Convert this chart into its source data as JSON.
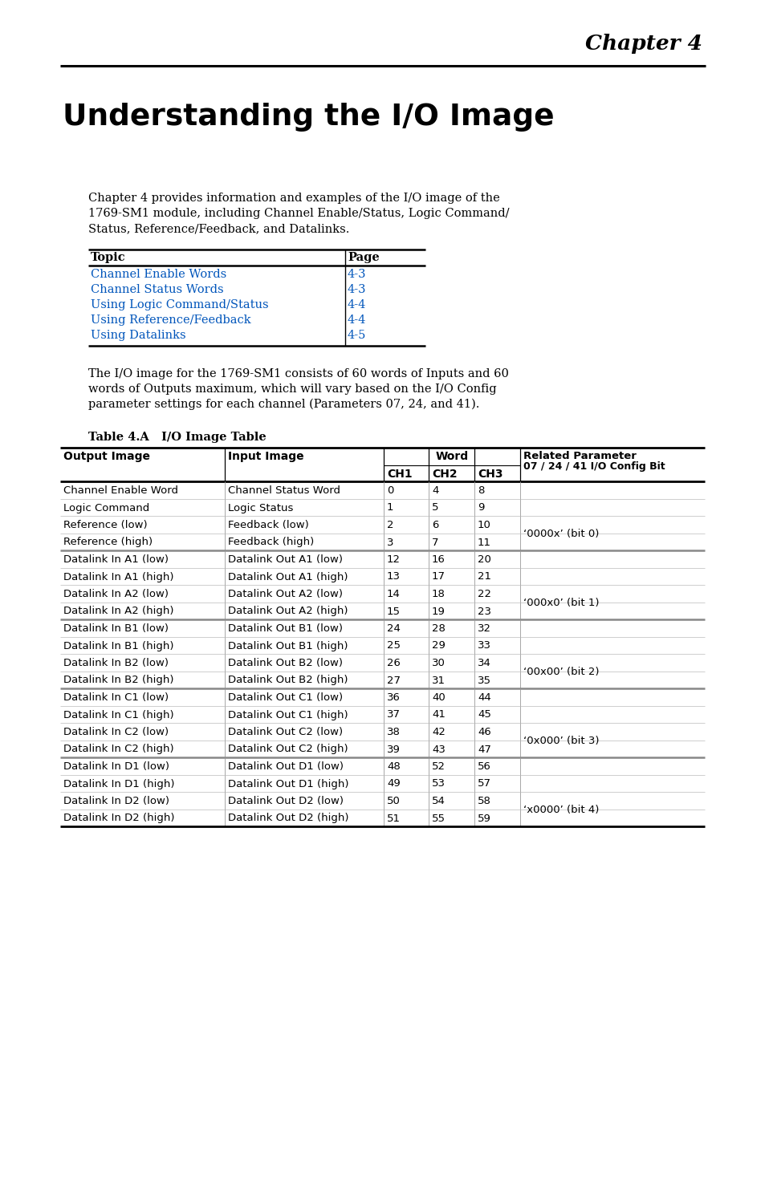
{
  "chapter_label": "Chapter 4",
  "title": "Understanding the I/O Image",
  "intro_text": "Chapter 4 provides information and examples of the I/O image of the\n1769-SM1 module, including Channel Enable/Status, Logic Command/\nStatus, Reference/Feedback, and Datalinks.",
  "toc_header": [
    "Topic",
    "Page"
  ],
  "toc_rows": [
    [
      "Channel Enable Words",
      "4-3"
    ],
    [
      "Channel Status Words",
      "4-3"
    ],
    [
      "Using Logic Command/Status",
      "4-4"
    ],
    [
      "Using Reference/Feedback",
      "4-4"
    ],
    [
      "Using Datalinks",
      "4-5"
    ]
  ],
  "body_text": "The I/O image for the 1769-SM1 consists of 60 words of Inputs and 60\nwords of Outputs maximum, which will vary based on the I/O Config\nparameter settings for each channel (Parameters 07, 24, and 41).",
  "table_title": "Table 4.A   I/O Image Table",
  "table_rows": [
    [
      "Channel Enable Word",
      "Channel Status Word",
      "0",
      "4",
      "8",
      ""
    ],
    [
      "Logic Command",
      "Logic Status",
      "1",
      "5",
      "9",
      ""
    ],
    [
      "Reference (low)",
      "Feedback (low)",
      "2",
      "6",
      "10",
      "‘0000x’ (bit 0)"
    ],
    [
      "Reference (high)",
      "Feedback (high)",
      "3",
      "7",
      "11",
      ""
    ],
    [
      "Datalink In A1 (low)",
      "Datalink Out A1 (low)",
      "12",
      "16",
      "20",
      ""
    ],
    [
      "Datalink In A1 (high)",
      "Datalink Out A1 (high)",
      "13",
      "17",
      "21",
      ""
    ],
    [
      "Datalink In A2 (low)",
      "Datalink Out A2 (low)",
      "14",
      "18",
      "22",
      "‘000x0’ (bit 1)"
    ],
    [
      "Datalink In A2 (high)",
      "Datalink Out A2 (high)",
      "15",
      "19",
      "23",
      ""
    ],
    [
      "Datalink In B1 (low)",
      "Datalink Out B1 (low)",
      "24",
      "28",
      "32",
      ""
    ],
    [
      "Datalink In B1 (high)",
      "Datalink Out B1 (high)",
      "25",
      "29",
      "33",
      ""
    ],
    [
      "Datalink In B2 (low)",
      "Datalink Out B2 (low)",
      "26",
      "30",
      "34",
      "‘00x00’ (bit 2)"
    ],
    [
      "Datalink In B2 (high)",
      "Datalink Out B2 (high)",
      "27",
      "31",
      "35",
      ""
    ],
    [
      "Datalink In C1 (low)",
      "Datalink Out C1 (low)",
      "36",
      "40",
      "44",
      ""
    ],
    [
      "Datalink In C1 (high)",
      "Datalink Out C1 (high)",
      "37",
      "41",
      "45",
      ""
    ],
    [
      "Datalink In C2 (low)",
      "Datalink Out C2 (low)",
      "38",
      "42",
      "46",
      "‘0x000’ (bit 3)"
    ],
    [
      "Datalink In C2 (high)",
      "Datalink Out C2 (high)",
      "39",
      "43",
      "47",
      ""
    ],
    [
      "Datalink In D1 (low)",
      "Datalink Out D1 (low)",
      "48",
      "52",
      "56",
      ""
    ],
    [
      "Datalink In D1 (high)",
      "Datalink Out D1 (high)",
      "49",
      "53",
      "57",
      ""
    ],
    [
      "Datalink In D2 (low)",
      "Datalink Out D2 (low)",
      "50",
      "54",
      "58",
      "‘x0000’ (bit 4)"
    ],
    [
      "Datalink In D2 (high)",
      "Datalink Out D2 (high)",
      "51",
      "55",
      "59",
      ""
    ]
  ],
  "thick_separator_before": [
    4,
    8,
    12,
    16
  ],
  "related_param_merge": [
    [
      2,
      3,
      "‘0000x’ (bit 0)"
    ],
    [
      6,
      7,
      "‘000x0’ (bit 1)"
    ],
    [
      10,
      11,
      "‘00x00’ (bit 2)"
    ],
    [
      14,
      15,
      "‘0x000’ (bit 3)"
    ],
    [
      18,
      19,
      "‘x0000’ (bit 4)"
    ]
  ],
  "link_color": "#0055BB",
  "text_color": "#000000",
  "bg_color": "#ffffff",
  "sep_thick_color": "#888888",
  "sep_thin_color": "#bbbbbb"
}
